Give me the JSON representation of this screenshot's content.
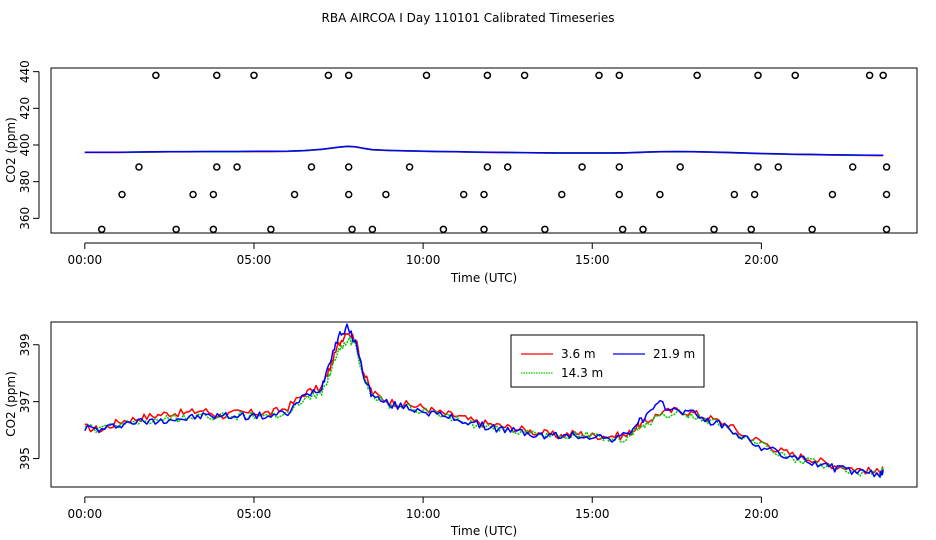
{
  "title": "RBA AIRCOA I  Day 110101  Calibrated Timeseries",
  "chart_data": [
    {
      "type": "line",
      "panel": "top",
      "xlabel": "Time (UTC)",
      "ylabel": "CO2 (ppm)",
      "xlim": [
        -1.0,
        24.6
      ],
      "ylim": [
        352,
        442
      ],
      "xticks": [
        0,
        5,
        10,
        15,
        20
      ],
      "xtick_labels": [
        "00:00",
        "05:00",
        "10:00",
        "15:00",
        "20:00"
      ],
      "yticks": [
        360,
        380,
        400,
        420,
        440
      ],
      "ytick_labels": [
        "360",
        "380",
        "400",
        "420",
        "440"
      ],
      "circle_levels": [
        354,
        373,
        388,
        438
      ],
      "calibration_points": {
        "level_354": [
          0.5,
          2.7,
          3.8,
          5.5,
          7.9,
          8.5,
          10.6,
          11.8,
          13.6,
          15.9,
          16.5,
          18.6,
          19.7,
          21.5,
          23.7
        ],
        "level_373": [
          1.1,
          3.2,
          3.8,
          6.2,
          7.8,
          8.9,
          11.2,
          11.8,
          14.1,
          15.8,
          17.0,
          19.2,
          19.8,
          22.1,
          23.7
        ],
        "level_388": [
          1.6,
          3.9,
          4.5,
          6.7,
          7.8,
          9.6,
          11.9,
          12.5,
          14.7,
          15.8,
          17.6,
          19.9,
          20.5,
          22.7,
          23.7
        ],
        "level_438": [
          2.1,
          3.9,
          5.0,
          7.2,
          7.8,
          10.1,
          11.9,
          13.0,
          15.2,
          15.8,
          18.1,
          19.9,
          21.0,
          23.2,
          23.6
        ]
      },
      "series": [
        {
          "name": "3.6 m",
          "color": "#ff0000"
        },
        {
          "name": "14.3 m",
          "color": "#00cc00"
        },
        {
          "name": "21.9 m",
          "color": "#0000ff"
        }
      ]
    },
    {
      "type": "line",
      "panel": "bottom",
      "xlabel": "Time (UTC)",
      "ylabel": "CO2 (ppm)",
      "xlim": [
        -1.0,
        24.6
      ],
      "ylim": [
        394.0,
        399.8
      ],
      "xticks": [
        0,
        5,
        10,
        15,
        20
      ],
      "xtick_labels": [
        "00:00",
        "05:00",
        "10:00",
        "15:00",
        "20:00"
      ],
      "yticks": [
        395,
        397,
        399
      ],
      "ytick_labels": [
        "395",
        "397",
        "399"
      ],
      "legend_position": "top-right-center",
      "x": [
        0.0,
        0.5,
        1.0,
        1.5,
        2.0,
        2.5,
        3.0,
        3.5,
        4.0,
        4.5,
        5.0,
        5.5,
        6.0,
        6.5,
        7.0,
        7.25,
        7.5,
        7.75,
        8.0,
        8.25,
        8.5,
        9.0,
        9.5,
        10.0,
        10.5,
        11.0,
        11.5,
        12.0,
        12.5,
        13.0,
        13.5,
        14.0,
        14.5,
        15.0,
        15.5,
        16.0,
        16.3,
        16.6,
        17.0,
        17.5,
        18.0,
        18.5,
        19.0,
        19.5,
        20.0,
        20.5,
        21.0,
        21.5,
        22.0,
        22.5,
        23.0,
        23.5,
        23.6
      ],
      "series": [
        {
          "name": "3.6 m",
          "color": "#ff0000",
          "values": [
            396.1,
            396.0,
            396.3,
            396.4,
            396.5,
            396.6,
            396.6,
            396.7,
            396.5,
            396.6,
            396.6,
            396.6,
            396.8,
            397.3,
            397.5,
            398.2,
            399.0,
            399.5,
            399.2,
            398.0,
            397.3,
            397.0,
            396.9,
            396.8,
            396.6,
            396.5,
            396.3,
            396.2,
            396.1,
            396.0,
            395.9,
            395.8,
            395.9,
            395.8,
            395.8,
            395.8,
            396.1,
            396.3,
            396.6,
            396.7,
            396.6,
            396.4,
            396.2,
            395.8,
            395.6,
            395.3,
            395.1,
            395.0,
            394.8,
            394.7,
            394.6,
            394.5,
            394.7
          ]
        },
        {
          "name": "14.3 m",
          "color": "#00cc00",
          "values": [
            396.1,
            396.0,
            396.2,
            396.3,
            396.3,
            396.4,
            396.4,
            396.5,
            396.5,
            396.5,
            396.5,
            396.5,
            396.6,
            397.1,
            397.3,
            398.0,
            398.8,
            399.2,
            399.0,
            397.8,
            397.2,
            396.9,
            396.8,
            396.7,
            396.5,
            396.4,
            396.2,
            396.1,
            396.0,
            395.9,
            395.8,
            395.8,
            395.8,
            395.8,
            395.7,
            395.7,
            396.0,
            396.2,
            396.5,
            396.6,
            396.5,
            396.3,
            396.1,
            395.7,
            395.5,
            395.2,
            395.0,
            394.9,
            394.7,
            394.6,
            394.5,
            394.4,
            394.6
          ]
        },
        {
          "name": "21.9 m",
          "color": "#0000ff",
          "values": [
            396.1,
            396.0,
            396.2,
            396.3,
            396.3,
            396.4,
            396.4,
            396.5,
            396.5,
            396.5,
            396.5,
            396.5,
            396.6,
            397.2,
            397.5,
            398.5,
            399.3,
            399.6,
            399.1,
            397.9,
            397.2,
            396.9,
            396.8,
            396.7,
            396.5,
            396.4,
            396.2,
            396.1,
            396.0,
            395.9,
            395.8,
            395.8,
            395.8,
            395.8,
            395.7,
            395.8,
            396.2,
            396.5,
            396.9,
            396.7,
            396.6,
            396.3,
            396.1,
            395.7,
            395.4,
            395.2,
            395.0,
            394.9,
            394.7,
            394.6,
            394.5,
            394.4,
            394.6
          ]
        }
      ],
      "top_panel_profile": [
        396.0,
        396.0,
        396.0,
        396.1,
        396.2,
        396.3,
        396.3,
        396.4,
        396.4,
        396.4,
        396.5,
        396.5,
        396.6,
        396.9,
        397.6,
        398.2,
        398.8,
        399.2,
        399.0,
        398.1,
        397.4,
        397.0,
        396.8,
        396.6,
        396.4,
        396.3,
        396.1,
        396.0,
        395.9,
        395.8,
        395.7,
        395.6,
        395.6,
        395.6,
        395.6,
        395.7,
        395.9,
        396.1,
        396.3,
        396.4,
        396.3,
        396.1,
        395.9,
        395.6,
        395.3,
        395.1,
        394.9,
        394.8,
        394.6,
        394.5,
        394.4,
        394.3,
        394.3
      ]
    }
  ]
}
